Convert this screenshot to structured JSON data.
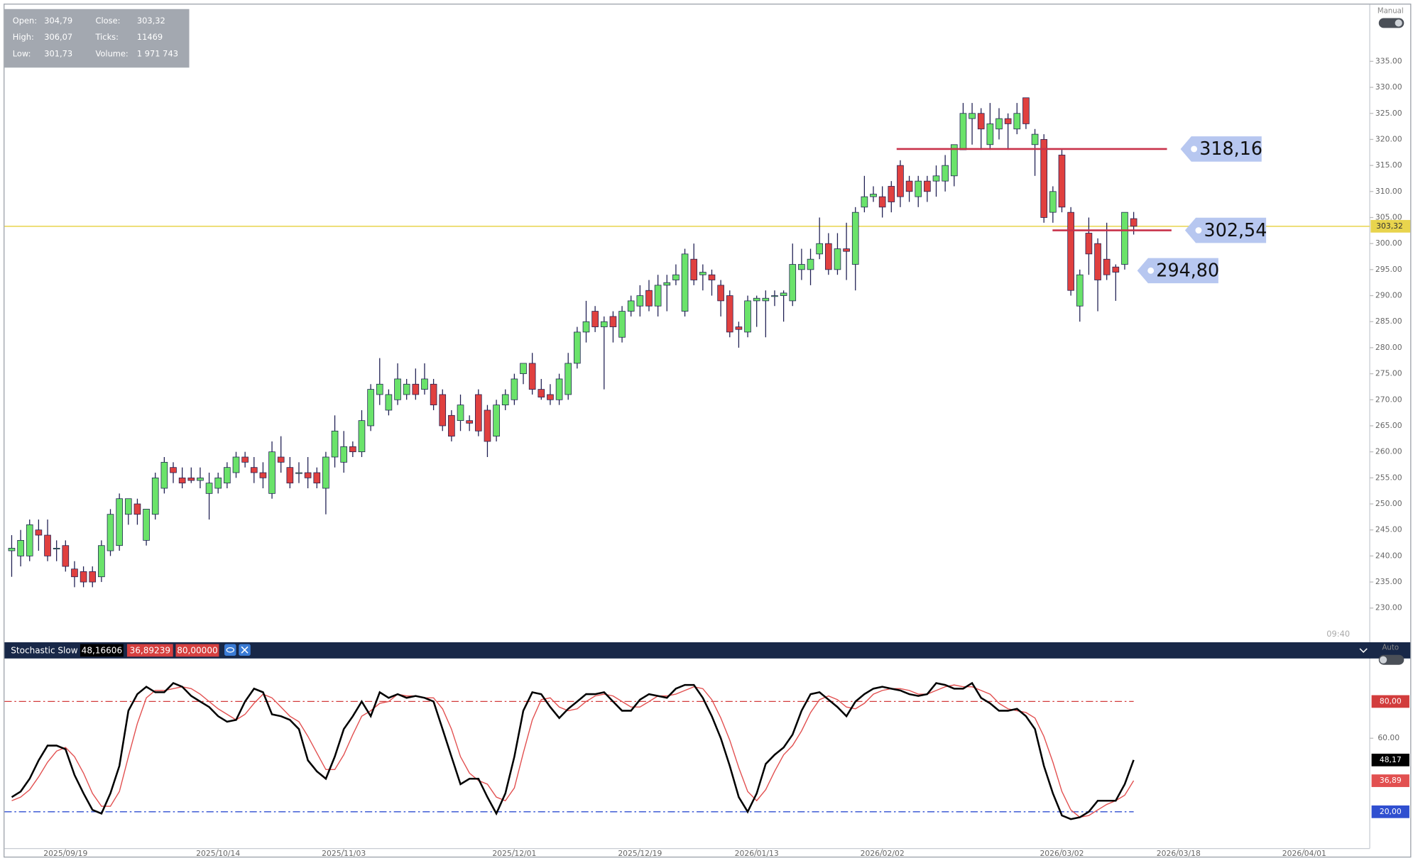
{
  "chart_data": [
    {
      "type": "candlestick",
      "info": [
        {
          "label": "Open:",
          "value": "304,79"
        },
        {
          "label": "Close:",
          "value": "303,32"
        },
        {
          "label": "High:",
          "value": "306,07"
        },
        {
          "label": "Ticks:",
          "value": "11469"
        },
        {
          "label": "Low:",
          "value": "301,73"
        },
        {
          "label": "Volume:",
          "value": "1 971 743"
        }
      ],
      "toggle_label": "Manual",
      "time_label": "09:40",
      "up_color": "#6ae36a",
      "down_color": "#e0403f",
      "xlim": [
        -0.8,
        151.3
      ],
      "ylim": [
        223.6,
        345.9
      ],
      "yticks": [
        {
          "value": 230,
          "label": "230.00"
        },
        {
          "value": 235,
          "label": "235.00"
        },
        {
          "value": 240,
          "label": "240.00"
        },
        {
          "value": 245,
          "label": "245.00"
        },
        {
          "value": 250,
          "label": "250.00"
        },
        {
          "value": 255,
          "label": "255.00"
        },
        {
          "value": 260,
          "label": "260.00"
        },
        {
          "value": 265,
          "label": "265.00"
        },
        {
          "value": 270,
          "label": "270.00"
        },
        {
          "value": 275,
          "label": "275.00"
        },
        {
          "value": 280,
          "label": "280.00"
        },
        {
          "value": 285,
          "label": "285.00"
        },
        {
          "value": 290,
          "label": "290.00"
        },
        {
          "value": 295,
          "label": "295.00"
        },
        {
          "value": 300,
          "label": "300.00"
        },
        {
          "value": 305,
          "label": "305.00"
        },
        {
          "value": 310,
          "label": "310.00"
        },
        {
          "value": 315,
          "label": "315.00"
        },
        {
          "value": 320,
          "label": "320.00"
        },
        {
          "value": 325,
          "label": "325.00"
        },
        {
          "value": 330,
          "label": "330.00"
        },
        {
          "value": 335,
          "label": "335.00"
        }
      ],
      "grid": false,
      "current_price": {
        "value": 303.32,
        "label": "303,32",
        "color": "#e8d44d"
      },
      "levels": [
        {
          "value": 318.16,
          "label": "318,16",
          "show_line": true,
          "color": "#c8324a"
        },
        {
          "value": 302.54,
          "label": "302,54",
          "show_line": true,
          "color": "#c8324a"
        },
        {
          "value": 294.8,
          "label": "294,80",
          "show_line": false,
          "color": "#c8324a"
        }
      ],
      "candles": [
        [
          241,
          244,
          236,
          241.5
        ],
        [
          240,
          245,
          238,
          243
        ],
        [
          240,
          247,
          239,
          246
        ],
        [
          245,
          247,
          241,
          244
        ],
        [
          244,
          247,
          239,
          240
        ],
        [
          241.5,
          243,
          239,
          241.5
        ],
        [
          242,
          243,
          237,
          238
        ],
        [
          237.5,
          239,
          234,
          236
        ],
        [
          237,
          238,
          234,
          235
        ],
        [
          237,
          238,
          234,
          235
        ],
        [
          236,
          243,
          235,
          242
        ],
        [
          241,
          249,
          240,
          248
        ],
        [
          242,
          252,
          241,
          251
        ],
        [
          248,
          251,
          246,
          251
        ],
        [
          250,
          251,
          246,
          248
        ],
        [
          243,
          249,
          242,
          249
        ],
        [
          248,
          256,
          247,
          255
        ],
        [
          253,
          259,
          252,
          258
        ],
        [
          257,
          258,
          254,
          256
        ],
        [
          255,
          257,
          253,
          254
        ],
        [
          255,
          257,
          254,
          254.5
        ],
        [
          254.5,
          257,
          253,
          255
        ],
        [
          252,
          256,
          247,
          254
        ],
        [
          253,
          256,
          252,
          255
        ],
        [
          254,
          258,
          253,
          257
        ],
        [
          256,
          260,
          255,
          259
        ],
        [
          259,
          260,
          257,
          258
        ],
        [
          257,
          259,
          254,
          256
        ],
        [
          256,
          258,
          253,
          255
        ],
        [
          252,
          262,
          251,
          260
        ],
        [
          259,
          263,
          256,
          258
        ],
        [
          257,
          259,
          253,
          254
        ],
        [
          256,
          258,
          254,
          256
        ],
        [
          256,
          259,
          253,
          255
        ],
        [
          256,
          257,
          253,
          254
        ],
        [
          253,
          260,
          248,
          259
        ],
        [
          259,
          267,
          257,
          264
        ],
        [
          258,
          264,
          256,
          261
        ],
        [
          261,
          262,
          259,
          260
        ],
        [
          260,
          268,
          259,
          266
        ],
        [
          265,
          273,
          264,
          272
        ],
        [
          271,
          278,
          269,
          273
        ],
        [
          268,
          272,
          267,
          271
        ],
        [
          270,
          277,
          269,
          274
        ],
        [
          271,
          274,
          270,
          273
        ],
        [
          273,
          276,
          270,
          271
        ],
        [
          272,
          277,
          271,
          274
        ],
        [
          273,
          274,
          268,
          269
        ],
        [
          271,
          272,
          264,
          265
        ],
        [
          267,
          268,
          262,
          263
        ],
        [
          266,
          271,
          264,
          269
        ],
        [
          266,
          267,
          264,
          265.5
        ],
        [
          271,
          272,
          263,
          264
        ],
        [
          268,
          269,
          259,
          262
        ],
        [
          263,
          270,
          262,
          269
        ],
        [
          269,
          272,
          268,
          271
        ],
        [
          270,
          275,
          269,
          274
        ],
        [
          275,
          277,
          273,
          277
        ],
        [
          277,
          279,
          271,
          272
        ],
        [
          272,
          274,
          270,
          270.5
        ],
        [
          271,
          273,
          269,
          270
        ],
        [
          270,
          275,
          269,
          274
        ],
        [
          271,
          279,
          270,
          277
        ],
        [
          277,
          284,
          276,
          283
        ],
        [
          283,
          289,
          281,
          285
        ],
        [
          287,
          288,
          283,
          284
        ],
        [
          284,
          286,
          272,
          285
        ],
        [
          286,
          287,
          281,
          284
        ],
        [
          282,
          288,
          281,
          287
        ],
        [
          287,
          290,
          286,
          289
        ],
        [
          288,
          292,
          286,
          290
        ],
        [
          291,
          293,
          287,
          288
        ],
        [
          288,
          294,
          286,
          292
        ],
        [
          292,
          294,
          287,
          292.5
        ],
        [
          293,
          296,
          292,
          294
        ],
        [
          287,
          299,
          286,
          298
        ],
        [
          297,
          300,
          292,
          293
        ],
        [
          294,
          296,
          291,
          294.5
        ],
        [
          294,
          295,
          290,
          293
        ],
        [
          292,
          293,
          286,
          289
        ],
        [
          290,
          291,
          282,
          283
        ],
        [
          284,
          285,
          280,
          283.5
        ],
        [
          283,
          290,
          282,
          289
        ],
        [
          289,
          290,
          284,
          289.5
        ],
        [
          289,
          291,
          282,
          289.5
        ],
        [
          290,
          291,
          288,
          290
        ],
        [
          290,
          291,
          285,
          290.5
        ],
        [
          289,
          300,
          288,
          296
        ],
        [
          295,
          299,
          293,
          296
        ],
        [
          295,
          299,
          292,
          297
        ],
        [
          298,
          305,
          297,
          300
        ],
        [
          300,
          302,
          294,
          295
        ],
        [
          295,
          302,
          294,
          299
        ],
        [
          299,
          304,
          293,
          298.5
        ],
        [
          296,
          307,
          291,
          306
        ],
        [
          307,
          313,
          306,
          309
        ],
        [
          309,
          311,
          308,
          309.5
        ],
        [
          309,
          311,
          305,
          307
        ],
        [
          311,
          312,
          306,
          308
        ],
        [
          315,
          316,
          307,
          309
        ],
        [
          312,
          313,
          308,
          310
        ],
        [
          309,
          313,
          307,
          312
        ],
        [
          312,
          313,
          308,
          310
        ],
        [
          312,
          315,
          309,
          313
        ],
        [
          312,
          317,
          310,
          315
        ],
        [
          313,
          319,
          311,
          319
        ],
        [
          318,
          327,
          318,
          325
        ],
        [
          324,
          327,
          319,
          325
        ],
        [
          325,
          326,
          318,
          322
        ],
        [
          319,
          327,
          318,
          323
        ],
        [
          322,
          326,
          320,
          324
        ],
        [
          324,
          325,
          318,
          323
        ],
        [
          322,
          327,
          321,
          325
        ],
        [
          328,
          328,
          322,
          323
        ],
        [
          319,
          322,
          313,
          321
        ],
        [
          320,
          321,
          304,
          305
        ],
        [
          306,
          311,
          304,
          310
        ],
        [
          317,
          318,
          306,
          307
        ],
        [
          306,
          307,
          290,
          291
        ],
        [
          288,
          295,
          285,
          294
        ],
        [
          302,
          305,
          294,
          298
        ],
        [
          300,
          301,
          287,
          293
        ],
        [
          297,
          304,
          293,
          294
        ],
        [
          295.5,
          296,
          289,
          294.5
        ],
        [
          296,
          306,
          295,
          306
        ],
        [
          304.79,
          306.07,
          301.73,
          303.32
        ]
      ]
    },
    {
      "type": "line",
      "title": "Stochastic Slow",
      "toggle_label": "Auto",
      "xlim": [
        -0.8,
        151.3
      ],
      "ylim": [
        0,
        103.4
      ],
      "yticks": [
        {
          "value": 60,
          "label": "60.00"
        }
      ],
      "levels": [
        {
          "value": 80,
          "label": "80,00",
          "header_label": "80,00000",
          "color": "#d23c3c"
        },
        {
          "value": 20,
          "label": "20,00",
          "color": "#2f4fd0"
        }
      ],
      "xticks": [
        {
          "value": 6,
          "label": "2025/09/19"
        },
        {
          "value": 23,
          "label": "2025/10/14"
        },
        {
          "value": 37,
          "label": "2025/11/03"
        },
        {
          "value": 56,
          "label": "2025/12/01"
        },
        {
          "value": 70,
          "label": "2025/12/19"
        },
        {
          "value": 83,
          "label": "2026/01/13"
        },
        {
          "value": 97,
          "label": "2026/02/02"
        },
        {
          "value": 117,
          "label": "2026/03/02"
        },
        {
          "value": 130,
          "label": "2026/03/18"
        },
        {
          "value": 144,
          "label": "2026/04/01"
        }
      ],
      "series": [
        {
          "color": "#000000",
          "header_label": "48,16606",
          "value_label": "48,17",
          "values": [
            28,
            31,
            38,
            48,
            56,
            56,
            54,
            40,
            30,
            21,
            19,
            30,
            45,
            75,
            84,
            88,
            85,
            85,
            90,
            88,
            83,
            80,
            77,
            72,
            69,
            70,
            80,
            87,
            85,
            73,
            72,
            70,
            65,
            48,
            42,
            38,
            50,
            65,
            72,
            80,
            72,
            85,
            82,
            84,
            82,
            83,
            82,
            80,
            65,
            50,
            35,
            38,
            38,
            28,
            19,
            30,
            50,
            75,
            85,
            84,
            77,
            71,
            76,
            80,
            84,
            84,
            85,
            80,
            75,
            75,
            81,
            84,
            83,
            82,
            87,
            89,
            89,
            82,
            72,
            60,
            45,
            28,
            20,
            30,
            46,
            51,
            55,
            62,
            75,
            84,
            85,
            81,
            77,
            72,
            80,
            84,
            87,
            88,
            87,
            86,
            84,
            83,
            84,
            90,
            89,
            87,
            87,
            90,
            82,
            79,
            75,
            75,
            76,
            72,
            65,
            45,
            30,
            18,
            16,
            17,
            20,
            26,
            26,
            26,
            35,
            48.17
          ]
        },
        {
          "color": "#e25050",
          "header_label": "36,89239",
          "value_label": "36,89",
          "values": [
            26,
            28,
            32,
            39,
            47,
            53,
            55,
            50,
            41,
            30,
            23,
            23,
            31,
            50,
            68,
            82,
            86,
            86,
            87,
            88,
            87,
            84,
            80,
            76,
            73,
            70,
            73,
            79,
            84,
            82,
            77,
            72,
            69,
            61,
            52,
            43,
            43,
            51,
            62,
            72,
            75,
            79,
            80,
            84,
            83,
            83,
            82,
            82,
            76,
            65,
            50,
            41,
            37,
            35,
            28,
            26,
            33,
            52,
            70,
            81,
            82,
            77,
            75,
            76,
            80,
            83,
            84,
            83,
            80,
            77,
            77,
            80,
            83,
            83,
            84,
            86,
            88,
            87,
            81,
            71,
            59,
            44,
            31,
            26,
            32,
            42,
            51,
            56,
            64,
            74,
            81,
            83,
            81,
            77,
            76,
            79,
            84,
            86,
            87,
            87,
            86,
            84,
            84,
            86,
            88,
            89,
            88,
            88,
            86,
            84,
            79,
            76,
            75,
            74,
            71,
            61,
            47,
            31,
            21,
            17,
            18,
            21,
            24,
            26,
            29,
            36.89
          ]
        }
      ]
    }
  ]
}
